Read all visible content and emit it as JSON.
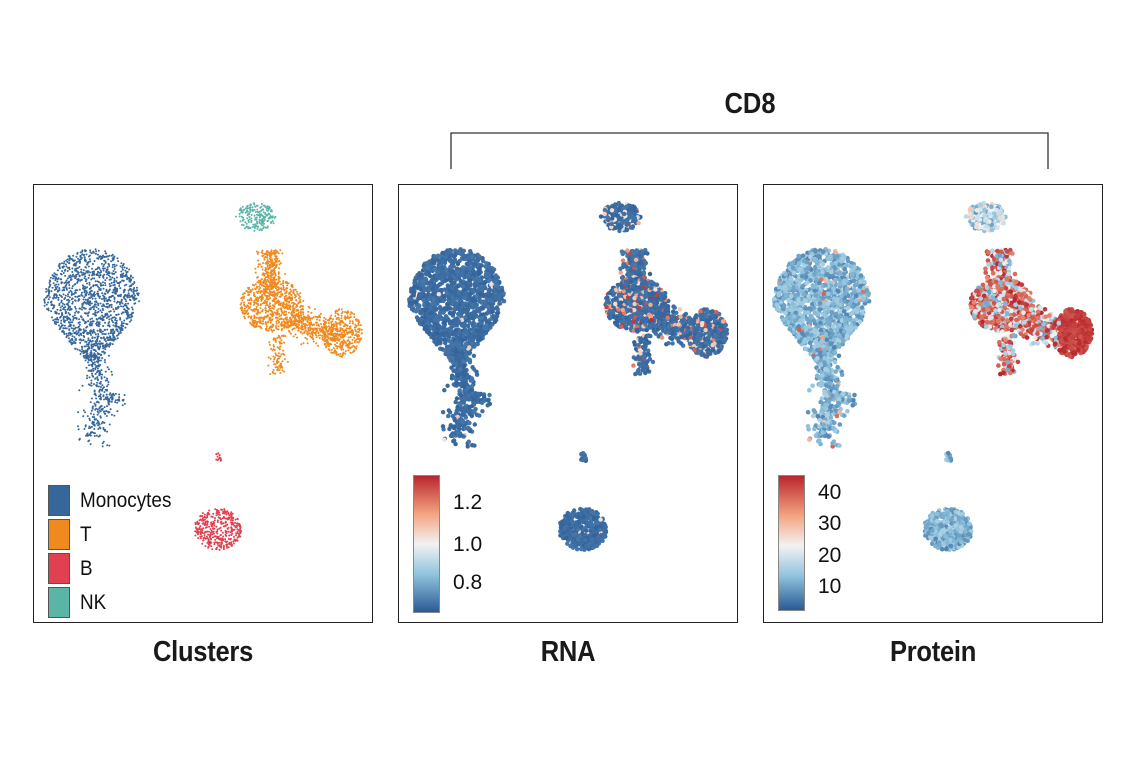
{
  "header": {
    "group_title": "CD8"
  },
  "colors": {
    "monocytes": "#35679b",
    "t": "#f08a1e",
    "b": "#e0404f",
    "nk": "#5ab5a6",
    "low": "#2a5a95",
    "mid": "#f2f2f2",
    "high": "#b8262e"
  },
  "chart_data": [
    {
      "type": "scatter",
      "title": "Clusters",
      "color_by": "cluster",
      "legend": {
        "placement": "bottom-left",
        "entries": [
          {
            "label": "Monocytes",
            "color": "#35679b"
          },
          {
            "label": "T",
            "color": "#f08a1e"
          },
          {
            "label": "B",
            "color": "#e0404f"
          },
          {
            "label": "NK",
            "color": "#5ab5a6"
          }
        ]
      },
      "xlabel": "",
      "ylabel": "",
      "grid": false
    },
    {
      "type": "scatter",
      "title": "RNA",
      "feature": "CD8",
      "color_by": "expression",
      "colorbar": {
        "placement": "bottom-left",
        "range": [
          0.6,
          1.4
        ],
        "ticks": [
          {
            "label": "1.2",
            "value": 1.2
          },
          {
            "label": "1.0",
            "value": 1.0
          },
          {
            "label": "0.8",
            "value": 0.8
          }
        ]
      },
      "xlabel": "",
      "ylabel": "",
      "grid": false
    },
    {
      "type": "scatter",
      "title": "Protein",
      "feature": "CD8",
      "color_by": "expression",
      "colorbar": {
        "placement": "bottom-left",
        "range": [
          0,
          46
        ],
        "ticks": [
          {
            "label": "40",
            "value": 40
          },
          {
            "label": "30",
            "value": 30
          },
          {
            "label": "20",
            "value": 20
          },
          {
            "label": "10",
            "value": 10
          }
        ]
      },
      "xlabel": "",
      "ylabel": "",
      "grid": false
    }
  ]
}
